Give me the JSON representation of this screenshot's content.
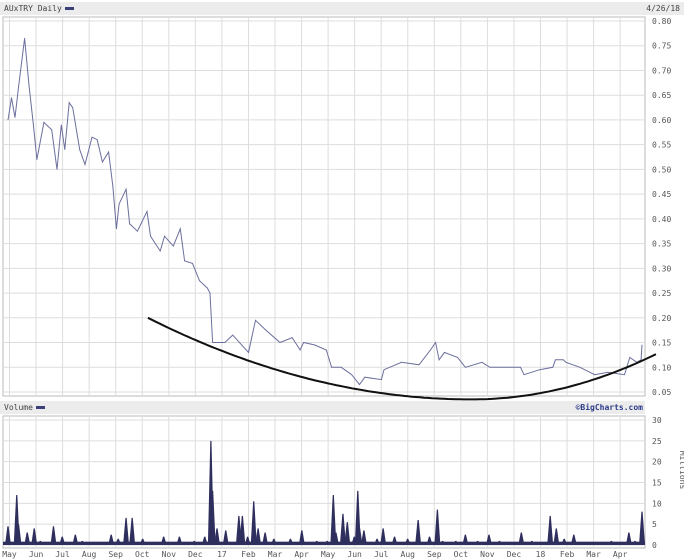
{
  "price_header": {
    "title": "AUxTRY Daily",
    "date": "4/26/18"
  },
  "volume_header": {
    "title": "Volume",
    "credit": "©BigCharts.com"
  },
  "colors": {
    "price_line": "#6b6f9c",
    "volume_fill": "#2f2f5e",
    "trend": "#111111",
    "grid": "#dddddd",
    "header_bg": "#ececec"
  },
  "chart_data": [
    {
      "type": "line",
      "title": "AUxTRY Daily",
      "ylim": [
        0.05,
        0.8
      ],
      "yticks": [
        "0.80",
        "0.75",
        "0.70",
        "0.65",
        "0.60",
        "0.55",
        "0.50",
        "0.45",
        "0.40",
        "0.35",
        "0.30",
        "0.25",
        "0.20",
        "0.15",
        "0.10",
        "0.05"
      ],
      "grid": true,
      "series": [
        {
          "x": [
            "2016-05-01",
            "2016-05-05",
            "2016-05-09",
            "2016-05-13",
            "2016-05-20",
            "2016-05-25",
            "2016-05-30",
            "2016-06-03",
            "2016-06-11",
            "2016-06-20",
            "2016-06-26",
            "2016-07-01",
            "2016-07-05",
            "2016-07-10",
            "2016-07-14",
            "2016-07-22",
            "2016-07-28",
            "2016-08-05",
            "2016-08-11",
            "2016-08-17",
            "2016-08-24",
            "2016-08-29",
            "2016-09-02",
            "2016-09-05",
            "2016-09-13",
            "2016-09-17",
            "2016-09-26",
            "2016-10-07",
            "2016-10-11",
            "2016-10-22",
            "2016-10-27",
            "2016-11-06",
            "2016-11-14",
            "2016-11-19",
            "2016-11-28",
            "2016-12-06",
            "2016-12-15",
            "2016-12-18",
            "2016-12-21",
            "2017-01-04",
            "2017-01-13",
            "2017-01-31",
            "2017-02-08",
            "2017-02-20",
            "2017-03-08",
            "2017-03-22",
            "2017-03-31",
            "2017-04-04",
            "2017-04-17",
            "2017-04-30",
            "2017-05-06",
            "2017-05-17",
            "2017-05-29",
            "2017-06-07",
            "2017-06-13",
            "2017-07-02",
            "2017-07-05",
            "2017-07-25",
            "2017-08-14",
            "2017-08-27",
            "2017-09-02",
            "2017-09-06",
            "2017-09-12",
            "2017-09-27",
            "2017-10-06",
            "2017-10-25",
            "2017-11-03",
            "2017-11-21",
            "2017-12-08",
            "2017-12-12",
            "2017-12-30",
            "2018-01-14",
            "2018-01-17",
            "2018-01-26",
            "2018-01-29",
            "2018-02-14",
            "2018-03-03",
            "2018-03-18",
            "2018-04-06",
            "2018-04-12",
            "2018-04-20",
            "2018-04-25",
            "2018-04-26"
          ],
          "y": [
            0.6,
            0.645,
            0.605,
            0.666,
            0.765,
            0.67,
            0.59,
            0.52,
            0.595,
            0.58,
            0.5,
            0.59,
            0.54,
            0.635,
            0.625,
            0.54,
            0.51,
            0.565,
            0.56,
            0.515,
            0.535,
            0.465,
            0.38,
            0.43,
            0.46,
            0.39,
            0.375,
            0.415,
            0.365,
            0.335,
            0.365,
            0.345,
            0.38,
            0.315,
            0.31,
            0.275,
            0.26,
            0.25,
            0.15,
            0.15,
            0.165,
            0.13,
            0.195,
            0.175,
            0.15,
            0.16,
            0.135,
            0.15,
            0.145,
            0.135,
            0.1,
            0.1,
            0.085,
            0.065,
            0.08,
            0.075,
            0.095,
            0.11,
            0.105,
            0.135,
            0.15,
            0.115,
            0.13,
            0.12,
            0.1,
            0.11,
            0.1,
            0.1,
            0.1,
            0.085,
            0.095,
            0.1,
            0.115,
            0.115,
            0.11,
            0.1,
            0.085,
            0.09,
            0.085,
            0.12,
            0.11,
            0.115,
            0.145
          ]
        }
      ],
      "trendline": {
        "x": [
          "2016-10-08",
          "2017-10-13",
          "2018-05-16"
        ],
        "y": [
          0.2,
          0.035,
          0.13
        ]
      },
      "xticks": [
        "May",
        "Jun",
        "Jul",
        "Aug",
        "Sep",
        "Oct",
        "Nov",
        "Dec",
        "17",
        "Feb",
        "Mar",
        "Apr",
        "May",
        "Jun",
        "Jul",
        "Aug",
        "Sep",
        "Oct",
        "Nov",
        "Dec",
        "18",
        "Feb",
        "Mar",
        "Apr"
      ]
    },
    {
      "type": "bar",
      "title": "Volume",
      "ylabel": "Millions",
      "ylim": [
        0,
        30
      ],
      "yticks": [
        "30",
        "25",
        "20",
        "15",
        "10",
        "5",
        "0"
      ],
      "grid": true,
      "series": [
        {
          "x": [
            "2016-05-01",
            "2016-05-11",
            "2016-05-13",
            "2016-05-23",
            "2016-05-31",
            "2016-06-07",
            "2016-06-22",
            "2016-07-02",
            "2016-07-17",
            "2016-07-25",
            "2016-08-12",
            "2016-08-27",
            "2016-09-04",
            "2016-09-13",
            "2016-09-20",
            "2016-10-02",
            "2016-10-26",
            "2016-11-13",
            "2016-11-30",
            "2016-12-12",
            "2016-12-19",
            "2016-12-21",
            "2016-12-26",
            "2017-01-05",
            "2017-01-20",
            "2017-01-24",
            "2017-01-30",
            "2017-02-06",
            "2017-02-11",
            "2017-02-19",
            "2017-03-01",
            "2017-03-20",
            "2017-04-02",
            "2017-04-19",
            "2017-05-01",
            "2017-05-08",
            "2017-05-11",
            "2017-05-19",
            "2017-05-24",
            "2017-06-01",
            "2017-06-05",
            "2017-06-07",
            "2017-06-12",
            "2017-06-27",
            "2017-07-04",
            "2017-07-17",
            "2017-08-01",
            "2017-08-13",
            "2017-08-26",
            "2017-09-04",
            "2017-09-10",
            "2017-09-25",
            "2017-10-06",
            "2017-10-20",
            "2017-11-02",
            "2017-11-14",
            "2017-12-09",
            "2017-12-21",
            "2018-01-02",
            "2018-01-11",
            "2018-01-18",
            "2018-01-27",
            "2018-02-07",
            "2018-02-16",
            "2018-03-22",
            "2018-04-11",
            "2018-04-18",
            "2018-04-26"
          ],
          "y": [
            4.5,
            12,
            5,
            3,
            4,
            1,
            4.5,
            2,
            2.5,
            1,
            0.5,
            2.5,
            1.5,
            6.5,
            6.5,
            1.5,
            2,
            2,
            1,
            2,
            25,
            13,
            4,
            3.5,
            7,
            7,
            2,
            10.5,
            4,
            3,
            1.5,
            1.5,
            3.5,
            1,
            1,
            12,
            3,
            7.5,
            5.5,
            2,
            13,
            4,
            3.5,
            1.5,
            4,
            2,
            1.5,
            6,
            2,
            8.5,
            1,
            1,
            2.5,
            1,
            2.5,
            1,
            3,
            1,
            0.5,
            7,
            4,
            1.5,
            2.5,
            0.5,
            1,
            3,
            1,
            8
          ]
        }
      ],
      "xticks": [
        "May",
        "Jun",
        "Jul",
        "Aug",
        "Sep",
        "Oct",
        "Nov",
        "Dec",
        "17",
        "Feb",
        "Mar",
        "Apr",
        "May",
        "Jun",
        "Jul",
        "Aug",
        "Sep",
        "Oct",
        "Nov",
        "Dec",
        "18",
        "Feb",
        "Mar",
        "Apr"
      ]
    }
  ]
}
